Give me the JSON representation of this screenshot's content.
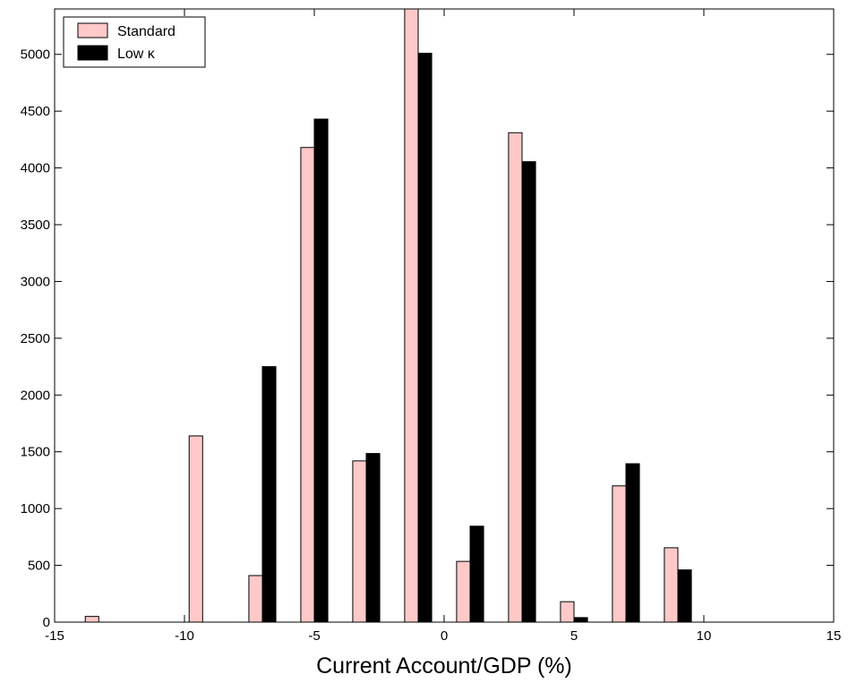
{
  "chart_data": {
    "type": "bar",
    "title": "",
    "xlabel": "Current Account/GDP (%)",
    "ylabel": "",
    "xlim": [
      -15,
      15
    ],
    "ylim": [
      0,
      5400
    ],
    "xticks": [
      "-15",
      "-10",
      "-5",
      "0",
      "5",
      "10",
      "15"
    ],
    "yticks": [
      "0",
      "500",
      "1000",
      "1500",
      "2000",
      "2500",
      "3000",
      "3500",
      "4000",
      "4500",
      "5000"
    ],
    "grid": false,
    "legend_position": "top-left",
    "centers": [
      -13.3,
      -9.3,
      -7.0,
      -5.0,
      -3.0,
      -1.0,
      1.0,
      3.0,
      5.0,
      7.0,
      9.0
    ],
    "series": [
      {
        "name": "Standard",
        "color": "#ffc9c9",
        "values": [
          50,
          1640,
          410,
          4180,
          1420,
          5400,
          535,
          4310,
          180,
          1200,
          655
        ]
      },
      {
        "name": "Low κ",
        "color": "#000000",
        "values": [
          0,
          0,
          2250,
          4430,
          1485,
          5010,
          845,
          4055,
          40,
          1395,
          460
        ]
      }
    ]
  }
}
